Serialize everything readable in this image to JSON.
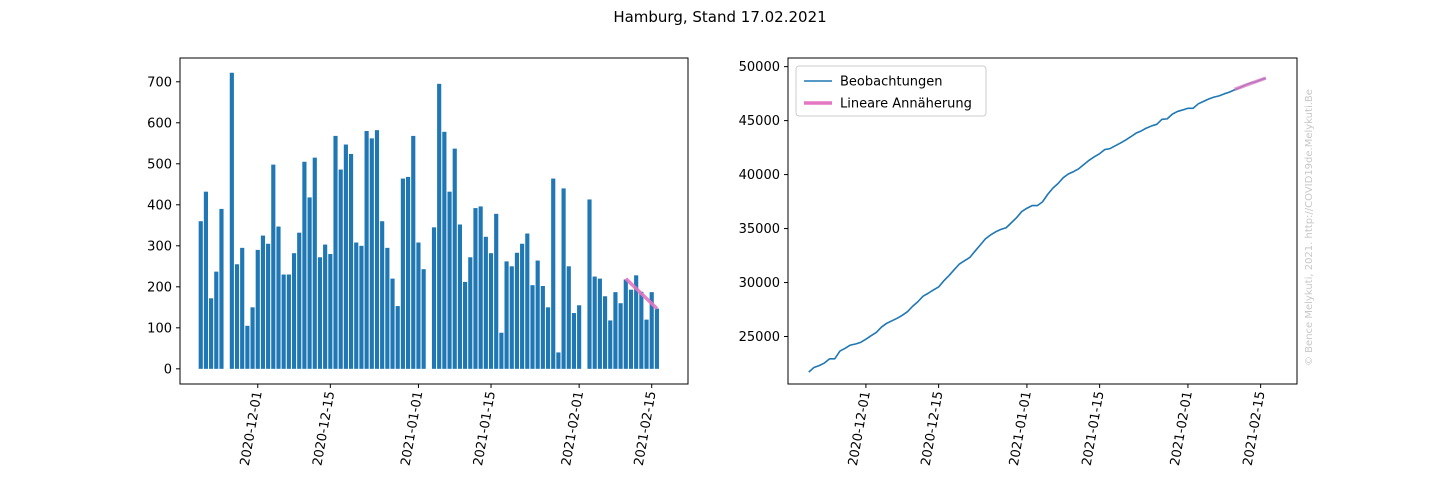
{
  "title": "Hamburg, Stand 17.02.2021",
  "watermark": "© Bence Melykuti, 2021. http://COVID19de.Melykuti.Be",
  "chart_data": [
    {
      "type": "bar",
      "color": "#1f77b4",
      "x": [
        "2020-11-20",
        "2020-11-21",
        "2020-11-22",
        "2020-11-23",
        "2020-11-24",
        "2020-11-25",
        "2020-11-26",
        "2020-11-27",
        "2020-11-28",
        "2020-11-29",
        "2020-11-30",
        "2020-12-01",
        "2020-12-02",
        "2020-12-03",
        "2020-12-04",
        "2020-12-05",
        "2020-12-06",
        "2020-12-07",
        "2020-12-08",
        "2020-12-09",
        "2020-12-10",
        "2020-12-11",
        "2020-12-12",
        "2020-12-13",
        "2020-12-14",
        "2020-12-15",
        "2020-12-16",
        "2020-12-17",
        "2020-12-18",
        "2020-12-19",
        "2020-12-20",
        "2020-12-21",
        "2020-12-22",
        "2020-12-23",
        "2020-12-24",
        "2020-12-25",
        "2020-12-26",
        "2020-12-27",
        "2020-12-28",
        "2020-12-29",
        "2020-12-30",
        "2020-12-31",
        "2021-01-01",
        "2021-01-02",
        "2021-01-03",
        "2021-01-04",
        "2021-01-05",
        "2021-01-06",
        "2021-01-07",
        "2021-01-08",
        "2021-01-09",
        "2021-01-10",
        "2021-01-11",
        "2021-01-12",
        "2021-01-13",
        "2021-01-14",
        "2021-01-15",
        "2021-01-16",
        "2021-01-17",
        "2021-01-18",
        "2021-01-19",
        "2021-01-20",
        "2021-01-21",
        "2021-01-22",
        "2021-01-23",
        "2021-01-24",
        "2021-01-25",
        "2021-01-26",
        "2021-01-27",
        "2021-01-28",
        "2021-01-29",
        "2021-01-30",
        "2021-01-31",
        "2021-02-01",
        "2021-02-02",
        "2021-02-03",
        "2021-02-04",
        "2021-02-05",
        "2021-02-06",
        "2021-02-07",
        "2021-02-08",
        "2021-02-09",
        "2021-02-10",
        "2021-02-11",
        "2021-02-12",
        "2021-02-13",
        "2021-02-14",
        "2021-02-15",
        "2021-02-16"
      ],
      "values": [
        360,
        432,
        172,
        237,
        390,
        0,
        722,
        255,
        295,
        105,
        150,
        290,
        325,
        305,
        498,
        347,
        230,
        230,
        282,
        332,
        505,
        418,
        515,
        272,
        303,
        280,
        568,
        486,
        547,
        524,
        308,
        300,
        580,
        562,
        582,
        360,
        295,
        220,
        153,
        464,
        468,
        568,
        308,
        243,
        0,
        345,
        695,
        578,
        432,
        537,
        352,
        212,
        272,
        392,
        396,
        322,
        282,
        378,
        88,
        262,
        250,
        283,
        305,
        330,
        204,
        264,
        202,
        150,
        464,
        40,
        440,
        250,
        136,
        155,
        0,
        413,
        225,
        220,
        177,
        118,
        187,
        160,
        218,
        193,
        228,
        188,
        120,
        187,
        147
      ],
      "trend": {
        "color": "#e377c2",
        "x": [
          "2021-02-10",
          "2021-02-16"
        ],
        "values": [
          220,
          147
        ]
      },
      "xlim": [
        "2020-11-16",
        "2021-02-22"
      ],
      "xticks": [
        "2020-12-01",
        "2020-12-15",
        "2021-01-01",
        "2021-01-15",
        "2021-02-01",
        "2021-02-15"
      ],
      "ylim": [
        -37,
        758
      ],
      "yticks": [
        0,
        100,
        200,
        300,
        400,
        500,
        600,
        700
      ]
    },
    {
      "type": "line",
      "legend": "upper left",
      "series": [
        {
          "name": "Beobachtungen",
          "color": "#1f77b4",
          "x": [
            "2020-11-20",
            "2020-11-21",
            "2020-11-22",
            "2020-11-23",
            "2020-11-24",
            "2020-11-25",
            "2020-11-26",
            "2020-11-27",
            "2020-11-28",
            "2020-11-29",
            "2020-11-30",
            "2020-12-01",
            "2020-12-02",
            "2020-12-03",
            "2020-12-04",
            "2020-12-05",
            "2020-12-06",
            "2020-12-07",
            "2020-12-08",
            "2020-12-09",
            "2020-12-10",
            "2020-12-11",
            "2020-12-12",
            "2020-12-13",
            "2020-12-14",
            "2020-12-15",
            "2020-12-16",
            "2020-12-17",
            "2020-12-18",
            "2020-12-19",
            "2020-12-20",
            "2020-12-21",
            "2020-12-22",
            "2020-12-23",
            "2020-12-24",
            "2020-12-25",
            "2020-12-26",
            "2020-12-27",
            "2020-12-28",
            "2020-12-29",
            "2020-12-30",
            "2020-12-31",
            "2021-01-01",
            "2021-01-02",
            "2021-01-03",
            "2021-01-04",
            "2021-01-05",
            "2021-01-06",
            "2021-01-07",
            "2021-01-08",
            "2021-01-09",
            "2021-01-10",
            "2021-01-11",
            "2021-01-12",
            "2021-01-13",
            "2021-01-14",
            "2021-01-15",
            "2021-01-16",
            "2021-01-17",
            "2021-01-18",
            "2021-01-19",
            "2021-01-20",
            "2021-01-21",
            "2021-01-22",
            "2021-01-23",
            "2021-01-24",
            "2021-01-25",
            "2021-01-26",
            "2021-01-27",
            "2021-01-28",
            "2021-01-29",
            "2021-01-30",
            "2021-01-31",
            "2021-02-01",
            "2021-02-02",
            "2021-02-03",
            "2021-02-04",
            "2021-02-05",
            "2021-02-06",
            "2021-02-07",
            "2021-02-08",
            "2021-02-09",
            "2021-02-10",
            "2021-02-11",
            "2021-02-12",
            "2021-02-13",
            "2021-02-14",
            "2021-02-15",
            "2021-02-16"
          ],
          "values": [
            21700,
            22132,
            22304,
            22541,
            22931,
            22931,
            23653,
            23908,
            24203,
            24308,
            24458,
            24748,
            25073,
            25378,
            25876,
            26223,
            26453,
            26683,
            26965,
            27297,
            27802,
            28220,
            28735,
            29007,
            29310,
            29590,
            30158,
            30644,
            31191,
            31715,
            32023,
            32323,
            32903,
            33465,
            34047,
            34407,
            34702,
            34922,
            35075,
            35539,
            36007,
            36575,
            36883,
            37126,
            37126,
            37471,
            38166,
            38744,
            39176,
            39713,
            40065,
            40277,
            40549,
            40941,
            41337,
            41659,
            41941,
            42319,
            42407,
            42669,
            42919,
            43202,
            43507,
            43837,
            44041,
            44305,
            44507,
            44657,
            45121,
            45161,
            45601,
            45851,
            45987,
            46142,
            46142,
            46555,
            46780,
            47000,
            47177,
            47295,
            47482,
            47642,
            47860,
            48053,
            48281,
            48469,
            48589,
            48776,
            48923
          ]
        },
        {
          "name": "Lineare Annäherung",
          "color": "#e377c2",
          "x": [
            "2021-02-10",
            "2021-02-16"
          ],
          "values": [
            47900,
            48950
          ]
        }
      ],
      "xlim": [
        "2020-11-16",
        "2021-02-22"
      ],
      "xticks": [
        "2020-12-01",
        "2020-12-15",
        "2021-01-01",
        "2021-01-15",
        "2021-02-01",
        "2021-02-15"
      ],
      "ylim": [
        20600,
        50800
      ],
      "yticks": [
        25000,
        30000,
        35000,
        40000,
        45000,
        50000
      ]
    }
  ]
}
